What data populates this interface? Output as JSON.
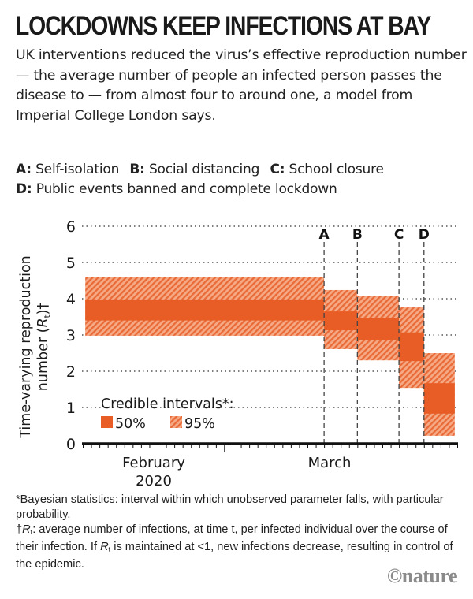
{
  "title": "LOCKDOWNS KEEP INFECTIONS AT BAY",
  "subtitle": "UK interventions reduced the virus’s effective reproduction number — the average number of people an infected person passes the disease to — from almost four to around one, a model from Imperial College London says.",
  "key": [
    {
      "letter": "A:",
      "label": "Self-isolation"
    },
    {
      "letter": "B:",
      "label": "Social distancing"
    },
    {
      "letter": "C:",
      "label": "School closure"
    },
    {
      "letter": "D:",
      "label": "Public events banned and complete lockdown"
    }
  ],
  "chart_data": {
    "type": "bar",
    "title": "",
    "ylabel_line1": "Time-varying reproduction",
    "ylabel_line2_prefix": "number (",
    "ylabel_r": "R",
    "ylabel_sub": "t",
    "ylabel_suffix": ")†",
    "ylim": [
      0,
      6
    ],
    "yticks": [
      "0",
      "1",
      "2",
      "3",
      "4",
      "5",
      "6"
    ],
    "xlim_days": [
      0,
      45
    ],
    "x_labels": [
      {
        "text": "February",
        "day": 17
      },
      {
        "text": "2020",
        "day": 17
      },
      {
        "text": "March",
        "day": 29
      }
    ],
    "major_tick_day": 17,
    "interventions": [
      {
        "letter": "A",
        "day": 29
      },
      {
        "letter": "B",
        "day": 33
      },
      {
        "letter": "C",
        "day": 38
      },
      {
        "letter": "D",
        "day": 41
      }
    ],
    "bars": [
      {
        "x_start": 0.3,
        "x_end": 29,
        "ci95": [
          2.98,
          4.6
        ],
        "ci50": [
          3.4,
          3.98
        ]
      },
      {
        "x_start": 29,
        "x_end": 33,
        "ci95": [
          2.61,
          4.24
        ],
        "ci50": [
          3.13,
          3.65
        ]
      },
      {
        "x_start": 33,
        "x_end": 38,
        "ci95": [
          2.3,
          4.07
        ],
        "ci50": [
          2.87,
          3.46
        ]
      },
      {
        "x_start": 38,
        "x_end": 41,
        "ci95": [
          1.54,
          3.76
        ],
        "ci50": [
          2.28,
          3.07
        ]
      },
      {
        "x_start": 41,
        "x_end": 44.7,
        "ci95": [
          0.22,
          2.5
        ],
        "ci50": [
          0.83,
          1.67
        ]
      }
    ],
    "legend": {
      "title": "Credible intervals*:",
      "items": [
        {
          "label": "50%",
          "style": "solid"
        },
        {
          "label": "95%",
          "style": "hatched"
        }
      ],
      "placement": "bottom-left"
    },
    "colors": {
      "solid": "#e85d26",
      "hatch_light": "#f5a985",
      "hatch_dark": "#e96a36",
      "grid": "#555555",
      "axis": "#111111"
    }
  },
  "footnotes": {
    "star": "*Bayesian statistics: interval within which unobserved parameter falls, with particular probability.",
    "dagger_mark": "†",
    "r": "R",
    "t": "t",
    "dagger_part1": ": average number of infections, at time t, per infected individual over the course of their infection. If ",
    "dagger_part2": " is maintained at <1, new infections decrease, resulting in control of the epidemic."
  },
  "logo": "©nature"
}
